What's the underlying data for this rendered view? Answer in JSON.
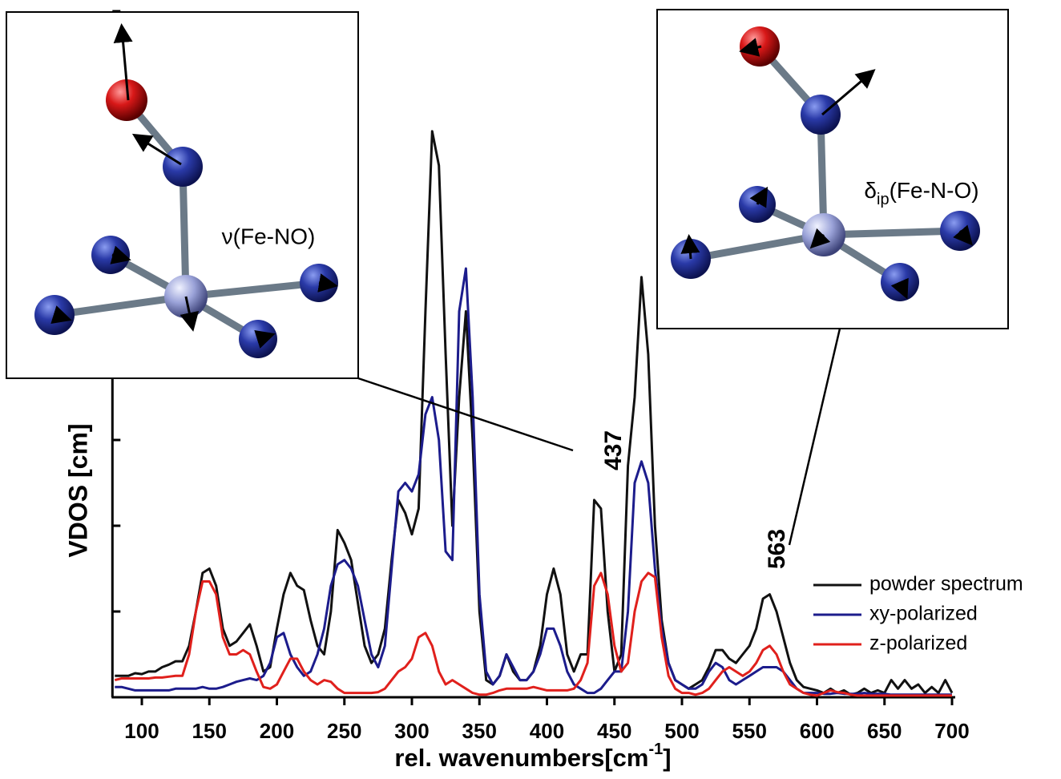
{
  "chart_data": {
    "type": "line",
    "y_label": "VDOS [cm]",
    "x_label": {
      "text": "rel. wavenumbers[cm",
      "superscript": "-1",
      "suffix": "]"
    },
    "xlim": [
      80,
      700
    ],
    "xticks": [
      100,
      150,
      200,
      250,
      300,
      350,
      400,
      450,
      500,
      550,
      600,
      650,
      700
    ],
    "ylim": [
      0,
      8
    ],
    "yticks": [
      0,
      1,
      2,
      3,
      4,
      5,
      6,
      7,
      8
    ],
    "legend": "right",
    "x": [
      80,
      85,
      90,
      95,
      100,
      105,
      110,
      115,
      120,
      125,
      130,
      135,
      140,
      145,
      150,
      155,
      160,
      165,
      170,
      175,
      180,
      185,
      190,
      195,
      200,
      205,
      210,
      215,
      220,
      225,
      230,
      235,
      240,
      245,
      250,
      255,
      260,
      265,
      270,
      275,
      280,
      285,
      290,
      295,
      300,
      305,
      310,
      315,
      320,
      325,
      330,
      335,
      340,
      345,
      350,
      355,
      360,
      365,
      370,
      375,
      380,
      385,
      390,
      395,
      400,
      405,
      410,
      415,
      420,
      425,
      430,
      435,
      440,
      445,
      450,
      455,
      460,
      465,
      470,
      475,
      480,
      485,
      490,
      495,
      500,
      505,
      510,
      515,
      520,
      525,
      530,
      535,
      540,
      545,
      550,
      555,
      560,
      565,
      570,
      575,
      580,
      585,
      590,
      595,
      600,
      605,
      610,
      615,
      620,
      625,
      630,
      635,
      640,
      645,
      650,
      655,
      660,
      665,
      670,
      675,
      680,
      685,
      690,
      695,
      700
    ],
    "series": [
      {
        "name": "powder spectrum",
        "color": "#111111",
        "values": [
          0.25,
          0.25,
          0.25,
          0.28,
          0.27,
          0.3,
          0.3,
          0.35,
          0.38,
          0.42,
          0.42,
          0.6,
          1.0,
          1.45,
          1.5,
          1.3,
          0.8,
          0.6,
          0.65,
          0.75,
          0.85,
          0.6,
          0.3,
          0.35,
          0.8,
          1.2,
          1.45,
          1.3,
          1.25,
          0.9,
          0.6,
          0.5,
          1.0,
          1.95,
          1.8,
          1.6,
          1.1,
          0.6,
          0.4,
          0.5,
          0.8,
          1.6,
          2.3,
          2.15,
          1.9,
          2.2,
          4.5,
          6.6,
          6.2,
          4.0,
          2.0,
          3.5,
          4.5,
          3.0,
          1.0,
          0.2,
          0.15,
          0.25,
          0.5,
          0.3,
          0.2,
          0.2,
          0.3,
          0.6,
          1.2,
          1.5,
          1.2,
          0.5,
          0.3,
          0.5,
          0.5,
          2.3,
          2.2,
          1.0,
          0.3,
          0.5,
          2.7,
          3.5,
          4.9,
          4.0,
          2.0,
          0.9,
          0.4,
          0.2,
          0.15,
          0.1,
          0.15,
          0.2,
          0.35,
          0.55,
          0.55,
          0.45,
          0.4,
          0.5,
          0.6,
          0.8,
          1.15,
          1.2,
          1.0,
          0.7,
          0.4,
          0.2,
          0.12,
          0.1,
          0.08,
          0.05,
          0.1,
          0.05,
          0.08,
          0.03,
          0.05,
          0.1,
          0.05,
          0.08,
          0.05,
          0.2,
          0.1,
          0.2,
          0.1,
          0.15,
          0.05,
          0.12,
          0.05,
          0.2,
          0.05
        ]
      },
      {
        "name": "xy-polarized",
        "color": "#1c1c8c",
        "values": [
          0.12,
          0.12,
          0.1,
          0.08,
          0.08,
          0.08,
          0.08,
          0.08,
          0.08,
          0.1,
          0.1,
          0.1,
          0.1,
          0.12,
          0.1,
          0.1,
          0.12,
          0.15,
          0.18,
          0.2,
          0.22,
          0.2,
          0.25,
          0.4,
          0.7,
          0.75,
          0.5,
          0.35,
          0.25,
          0.3,
          0.5,
          0.8,
          1.3,
          1.55,
          1.6,
          1.5,
          1.3,
          0.9,
          0.5,
          0.35,
          0.6,
          1.5,
          2.4,
          2.5,
          2.4,
          2.6,
          3.3,
          3.5,
          3.0,
          1.7,
          1.6,
          4.5,
          5.0,
          3.5,
          1.2,
          0.3,
          0.15,
          0.25,
          0.5,
          0.35,
          0.2,
          0.2,
          0.3,
          0.5,
          0.8,
          0.8,
          0.6,
          0.3,
          0.15,
          0.1,
          0.05,
          0.05,
          0.1,
          0.2,
          0.3,
          0.3,
          1.0,
          2.5,
          2.75,
          2.5,
          1.5,
          0.8,
          0.4,
          0.2,
          0.15,
          0.1,
          0.1,
          0.15,
          0.3,
          0.4,
          0.35,
          0.2,
          0.15,
          0.2,
          0.25,
          0.3,
          0.35,
          0.35,
          0.35,
          0.3,
          0.2,
          0.1,
          0.05,
          0.05,
          0.05,
          0.04,
          0.04,
          0.05,
          0.04,
          0.04,
          0.04,
          0.05,
          0.04,
          0.04,
          0.04,
          0.03,
          0.03,
          0.03,
          0.03,
          0.03,
          0.03,
          0.03,
          0.03,
          0.03,
          0.03
        ]
      },
      {
        "name": "z-polarized",
        "color": "#e0201c",
        "values": [
          0.2,
          0.22,
          0.22,
          0.22,
          0.22,
          0.22,
          0.23,
          0.23,
          0.24,
          0.25,
          0.25,
          0.5,
          1.0,
          1.35,
          1.35,
          1.2,
          0.7,
          0.5,
          0.5,
          0.55,
          0.5,
          0.3,
          0.12,
          0.1,
          0.15,
          0.3,
          0.45,
          0.45,
          0.3,
          0.2,
          0.15,
          0.2,
          0.18,
          0.1,
          0.05,
          0.05,
          0.05,
          0.05,
          0.05,
          0.06,
          0.1,
          0.2,
          0.3,
          0.35,
          0.45,
          0.7,
          0.75,
          0.6,
          0.3,
          0.15,
          0.2,
          0.15,
          0.1,
          0.05,
          0.03,
          0.03,
          0.05,
          0.08,
          0.1,
          0.1,
          0.1,
          0.1,
          0.12,
          0.1,
          0.08,
          0.08,
          0.08,
          0.08,
          0.1,
          0.2,
          0.4,
          1.3,
          1.45,
          1.2,
          0.6,
          0.3,
          0.4,
          1.0,
          1.35,
          1.45,
          1.4,
          0.7,
          0.25,
          0.1,
          0.05,
          0.05,
          0.03,
          0.05,
          0.1,
          0.2,
          0.3,
          0.35,
          0.3,
          0.25,
          0.3,
          0.4,
          0.55,
          0.6,
          0.5,
          0.3,
          0.15,
          0.1,
          0.05,
          0.03,
          0.02,
          0.05,
          0.08,
          0.06,
          0.05,
          0.03,
          0.02,
          0.02,
          0.02,
          0.02,
          0.02,
          0.02,
          0.02,
          0.02,
          0.02,
          0.02,
          0.02,
          0.02,
          0.02,
          0.02,
          0.02
        ]
      }
    ],
    "annotations": [
      {
        "text": "437",
        "x": 437
      },
      {
        "text": "563",
        "x": 563
      }
    ],
    "insets": [
      {
        "label": "ν(Fe-NO)"
      },
      {
        "label": {
          "symbol": "δ",
          "subscript": "ip",
          "text": "(Fe-N-O)"
        }
      }
    ]
  }
}
